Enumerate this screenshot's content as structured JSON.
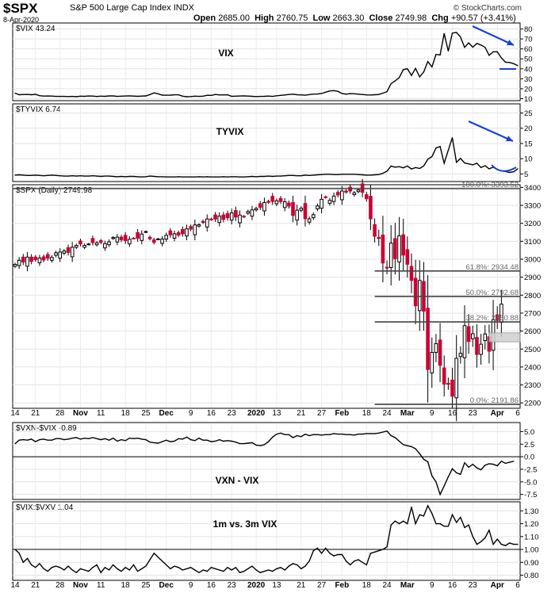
{
  "header": {
    "symbol": "$SPX",
    "description": "S&P 500 Large Cap Index",
    "exchange": "INDX",
    "date": "8-Apr-2020",
    "open_label": "Open",
    "open": "2685.00",
    "high_label": "High",
    "high": "2760.75",
    "low_label": "Low",
    "low": "2663.30",
    "close_label": "Close",
    "close": "2749.98",
    "chg_label": "Chg",
    "chg": "+90.57 (+3.41%)",
    "watermark": "© StockCharts.com"
  },
  "colors": {
    "up": "#000000",
    "down": "#cc0033",
    "annotation": "#1a3fe0",
    "fib": "#444444",
    "box": "#cfcfcf"
  },
  "x_axis": {
    "tick_labels": [
      "14",
      "21",
      "28",
      "Nov",
      "11",
      "18",
      "25",
      "Dec",
      "9",
      "16",
      "23",
      "2020",
      "13",
      "21",
      "27",
      "Feb",
      "18",
      "24",
      "Mar",
      "9",
      "16",
      "23",
      "Apr",
      "6"
    ],
    "bold_labels": [
      "Nov",
      "Dec",
      "2020",
      "Feb",
      "Mar",
      "Apr"
    ]
  },
  "chart_data": [
    {
      "type": "line",
      "panel": "vix",
      "legend": "$VIX 43.24",
      "annotation": "VIX",
      "yticks": [
        10,
        20,
        30,
        40,
        50,
        60,
        70,
        80
      ],
      "ylim": [
        8,
        86
      ],
      "x_index": "trading days from 2019-10-11 to 2020-04-08",
      "values": [
        15.6,
        14.0,
        14.2,
        14.3,
        14.0,
        14.4,
        13.0,
        12.6,
        12.7,
        12.6,
        12.3,
        12.3,
        12.3,
        12.1,
        12.3,
        12.0,
        12.5,
        12.4,
        12.7,
        12.6,
        12.2,
        12.5,
        12.4,
        12.8,
        12.8,
        12.3,
        12.5,
        12.7,
        12.8,
        12.6,
        12.4,
        12.6,
        12.8,
        14.1,
        15.9,
        14.9,
        13.6,
        13.5,
        13.6,
        13.9,
        13.9,
        12.5,
        12.0,
        12.1,
        12.5,
        12.3,
        12.5,
        13.4,
        13.3,
        14.2,
        13.8,
        13.8,
        13.9,
        12.4,
        12.5,
        12.7,
        12.8,
        12.6,
        12.4,
        12.1,
        12.3,
        12.4,
        12.6,
        12.3,
        12.9,
        13.3,
        13.7,
        14.2,
        14.5,
        14.0,
        13.8,
        13.5,
        14.1,
        14.6,
        14.7,
        15.2,
        16.5,
        17.8,
        18.1,
        17.4,
        15.2,
        14.5,
        15.1,
        14.9,
        14.5,
        14.2,
        13.8,
        13.7,
        14.0,
        14.2,
        15.6,
        17.1,
        25.0,
        27.9,
        31.2,
        39.2,
        40.1,
        33.4,
        40.5,
        31.9,
        36.8,
        47.3,
        41.9,
        54.5,
        53.9,
        75.5,
        57.8,
        75.9,
        76.5,
        72.0,
        61.6,
        66.0,
        61.7,
        65.5,
        63.9,
        61.6,
        53.5,
        57.1,
        57.1,
        50.9,
        46.7,
        46.4,
        45.2,
        43.2
      ]
    },
    {
      "type": "line",
      "panel": "tyvix",
      "legend": "$TYVIX 6.74",
      "annotation": "TYVIX",
      "yticks": [
        5,
        10,
        15,
        20,
        25
      ],
      "ylim": [
        2.5,
        28
      ],
      "values": [
        4.6,
        4.7,
        4.6,
        4.5,
        4.5,
        4.6,
        4.5,
        4.4,
        4.5,
        4.6,
        4.5,
        4.4,
        4.3,
        4.3,
        4.4,
        4.3,
        4.4,
        4.3,
        4.3,
        4.4,
        4.3,
        4.2,
        4.3,
        4.3,
        4.2,
        4.1,
        4.2,
        4.1,
        4.2,
        4.2,
        4.1,
        4.0,
        4.1,
        4.3,
        4.2,
        4.1,
        4.1,
        4.0,
        4.0,
        4.0,
        4.1,
        4.0,
        4.0,
        4.0,
        4.0,
        4.1,
        4.0,
        4.1,
        4.0,
        4.0,
        4.0,
        4.1,
        4.0,
        4.1,
        4.1,
        4.0,
        4.0,
        4.1,
        4.2,
        4.1,
        4.2,
        4.2,
        4.3,
        4.2,
        4.3,
        4.3,
        4.4,
        4.5,
        4.5,
        4.4,
        4.4,
        4.6,
        4.5,
        4.6,
        4.7,
        4.8,
        4.9,
        4.9,
        4.8,
        4.8,
        4.9,
        4.9,
        4.9,
        4.9,
        4.8,
        4.7,
        4.6,
        4.6,
        4.7,
        4.8,
        5.2,
        5.9,
        7.6,
        7.2,
        7.4,
        7.0,
        7.6,
        6.6,
        7.1,
        6.8,
        7.6,
        9.8,
        10.7,
        13.5,
        14.0,
        8.5,
        12.8,
        16.9,
        8.8,
        10.1,
        8.6,
        8.3,
        8.0,
        8.5,
        7.1,
        7.7,
        6.7,
        7.2,
        6.4,
        6.0,
        5.8,
        5.5,
        5.7,
        6.7
      ]
    },
    {
      "type": "candlestick",
      "panel": "spx",
      "legend": "$SPX (Daily) 2749.98",
      "yticks": [
        2200,
        2300,
        2400,
        2500,
        2600,
        2700,
        2800,
        2900,
        3000,
        3100,
        3200,
        3300,
        3400
      ],
      "ylim": [
        2170,
        3415
      ],
      "close": [
        2971,
        2994,
        2985,
        3012,
        2988,
        2998,
        3007,
        2996,
        3006,
        3010,
        3036,
        3040,
        3046,
        3038,
        3067,
        3077,
        3085,
        3077,
        3085,
        3093,
        3091,
        3094,
        3087,
        3097,
        3121,
        3123,
        3108,
        3104,
        3111,
        3117,
        3117,
        3140,
        3154,
        3114,
        3094,
        3113,
        3112,
        3133,
        3136,
        3142,
        3135,
        3142,
        3169,
        3168,
        3191,
        3192,
        3205,
        3224,
        3221,
        3224,
        3240,
        3222,
        3231,
        3258,
        3235,
        3246,
        3237,
        3266,
        3275,
        3283,
        3289,
        3316,
        3317,
        3322,
        3325,
        3321,
        3320,
        3296,
        3244,
        3273,
        3284,
        3226,
        3225,
        3248,
        3297,
        3334,
        3345,
        3328,
        3352,
        3358,
        3380,
        3374,
        3380,
        3370,
        3386,
        3373,
        3337,
        3225,
        3128,
        3116,
        2979,
        2954,
        3090,
        3003,
        3130,
        3023,
        2972,
        2882,
        2741,
        2882,
        2711,
        2386,
        2481,
        2530,
        2409,
        2305,
        2304,
        2237,
        2448,
        2476,
        2630,
        2542,
        2585,
        2470,
        2527,
        2584,
        2488,
        2664,
        2659,
        2750
      ],
      "fib_levels": [
        {
          "label": "100.0%: 3393.52",
          "value": 3393.52
        },
        {
          "label": "61.8%: 2934.48",
          "value": 2934.48
        },
        {
          "label": "50.0%: 2792.68",
          "value": 2792.68
        },
        {
          "label": "38.2%: 2650.88",
          "value": 2650.88
        },
        {
          "label": "0.0%: 2191.86",
          "value": 2191.86
        }
      ]
    },
    {
      "type": "line",
      "panel": "vxn_vix",
      "legend": "$VXN-$VIX -0.89",
      "annotation": "VXN - VIX",
      "yticks": [
        5.0,
        2.5,
        0.0,
        -2.5,
        -5.0,
        -7.5
      ],
      "ylim": [
        -8.5,
        6.8
      ],
      "values": [
        2.6,
        3.3,
        3.4,
        3.3,
        3.5,
        3.0,
        3.4,
        3.5,
        3.3,
        3.3,
        3.6,
        3.6,
        3.4,
        3.5,
        3.7,
        3.8,
        3.5,
        3.7,
        3.6,
        3.8,
        3.6,
        3.4,
        3.6,
        3.3,
        3.7,
        3.1,
        3.4,
        3.2,
        3.7,
        3.6,
        3.7,
        3.5,
        3.4,
        2.9,
        2.8,
        2.7,
        3.0,
        3.3,
        3.0,
        3.1,
        3.6,
        3.5,
        3.9,
        3.4,
        3.2,
        3.7,
        3.3,
        3.3,
        3.0,
        3.1,
        3.4,
        3.1,
        3.2,
        3.1,
        2.9,
        2.6,
        2.6,
        2.7,
        2.8,
        2.3,
        2.2,
        2.4,
        3.0,
        3.9,
        4.5,
        4.7,
        4.4,
        4.4,
        3.8,
        4.2,
        4.0,
        4.5,
        4.2,
        4.4,
        4.4,
        4.3,
        4.4,
        4.4,
        4.6,
        4.5,
        4.5,
        4.4,
        4.4,
        4.3,
        4.5,
        4.5,
        4.6,
        4.6,
        4.6,
        4.7,
        4.9,
        5.1,
        4.2,
        3.8,
        3.1,
        2.4,
        2.2,
        2.0,
        1.6,
        0.6,
        -0.5,
        -1.0,
        -3.8,
        -5.0,
        -7.5,
        -5.8,
        -4.0,
        -2.4,
        -3.2,
        -3.5,
        -1.2,
        -2.1,
        -1.5,
        -2.2,
        -2.6,
        -1.7,
        -1.4,
        -1.5,
        -1.8,
        -0.9,
        -1.3,
        -1.1,
        -0.9
      ]
    },
    {
      "type": "line",
      "panel": "vix_vxv",
      "legend": "$VIX:$VXV 1.04",
      "annotation": "1m vs. 3m VIX",
      "yticks": [
        1.3,
        1.2,
        1.1,
        1.0,
        0.9,
        0.8
      ],
      "ylim": [
        0.76,
        1.37
      ],
      "values": [
        1.0,
        0.97,
        0.9,
        0.93,
        0.88,
        0.86,
        0.89,
        0.85,
        0.83,
        0.86,
        0.87,
        0.86,
        0.84,
        0.87,
        0.84,
        0.82,
        0.85,
        0.84,
        0.83,
        0.86,
        0.88,
        0.82,
        0.86,
        0.84,
        0.88,
        0.85,
        0.83,
        0.86,
        0.84,
        0.88,
        0.83,
        0.85,
        0.87,
        0.92,
        0.97,
        0.94,
        0.91,
        0.88,
        0.85,
        0.87,
        0.86,
        0.84,
        0.85,
        0.86,
        0.84,
        0.82,
        0.84,
        0.83,
        0.86,
        0.85,
        0.84,
        0.83,
        0.86,
        0.84,
        0.86,
        0.82,
        0.83,
        0.85,
        0.87,
        0.84,
        0.82,
        0.83,
        0.84,
        0.83,
        0.85,
        0.86,
        0.84,
        0.87,
        0.89,
        0.88,
        0.85,
        0.87,
        0.91,
        0.99,
        1.01,
        0.97,
        1.01,
        0.97,
        0.95,
        0.96,
        0.96,
        0.91,
        0.88,
        0.91,
        0.92,
        0.9,
        0.88,
        0.97,
        0.98,
        0.99,
        1.0,
        1.02,
        1.19,
        1.22,
        1.2,
        1.22,
        1.2,
        1.33,
        1.2,
        1.27,
        1.26,
        1.34,
        1.28,
        1.2,
        1.2,
        1.18,
        1.18,
        1.27,
        1.21,
        1.25,
        1.17,
        1.19,
        1.1,
        1.04,
        1.06,
        1.09,
        1.15,
        1.04,
        1.08,
        1.04,
        1.03,
        1.05,
        1.04,
        1.04
      ]
    }
  ]
}
